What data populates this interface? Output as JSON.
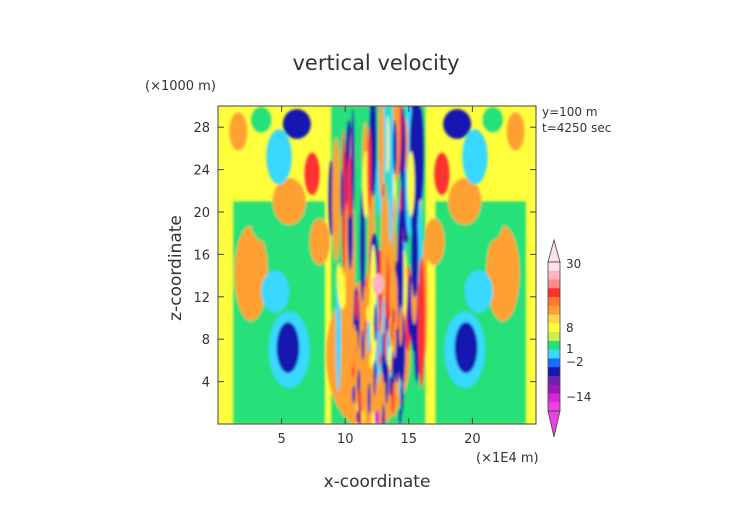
{
  "chart_data": {
    "type": "heatmap",
    "title": "vertical velocity",
    "xlabel": "x-coordinate",
    "ylabel": "z-coordinate",
    "x_unit": "(×1E4 m)",
    "y_unit": "(×1000 m)",
    "annotations": [
      "y=100 m",
      "t=4250 sec"
    ],
    "xlim": [
      0,
      25
    ],
    "ylim": [
      0,
      30
    ],
    "x_ticks": [
      5,
      10,
      15,
      20
    ],
    "y_ticks": [
      4,
      8,
      12,
      16,
      20,
      24,
      28
    ],
    "colorbar": {
      "placement": "right",
      "tick_labels": [
        "30",
        "8",
        "1",
        "−2",
        "−14"
      ],
      "tick_values": [
        30,
        8,
        1,
        -2,
        -14
      ],
      "colors": [
        "#ffe0ec",
        "#ffb3c3",
        "#ff8a8a",
        "#ff3030",
        "#ff7a2a",
        "#ffa030",
        "#ffd84a",
        "#ffff3c",
        "#c8f050",
        "#28e07a",
        "#38d8ff",
        "#1870ff",
        "#1818b0",
        "#6a22b0",
        "#9e18b8",
        "#d428d8",
        "#f040e0"
      ]
    },
    "colors": {
      "background": "#ffff3c",
      "near_zero": "#28e07a",
      "positive_light": "#ffa030",
      "positive_strong": "#ff3030",
      "negative_light": "#38d8ff",
      "negative_strong": "#1818b0",
      "extreme_positive": "#ffb3c3",
      "extreme_negative": "#d428d8"
    }
  }
}
